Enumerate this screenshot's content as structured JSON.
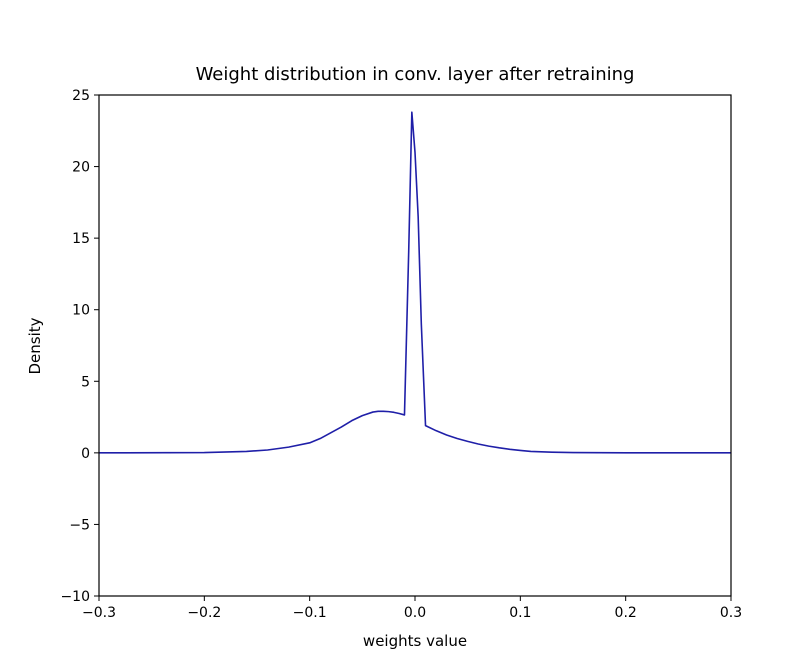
{
  "chart_data": {
    "type": "line",
    "title": "Weight distribution in conv. layer after retraining",
    "xlabel": "weights value",
    "ylabel": "Density",
    "xlim": [
      -0.3,
      0.3
    ],
    "ylim": [
      -10,
      25
    ],
    "xticks": [
      -0.3,
      -0.2,
      -0.1,
      0.0,
      0.1,
      0.2,
      0.3
    ],
    "xtick_labels": [
      "−0.3",
      "−0.2",
      "−0.1",
      "0.0",
      "0.1",
      "0.2",
      "0.3"
    ],
    "yticks": [
      -10,
      -5,
      0,
      5,
      10,
      15,
      20,
      25
    ],
    "ytick_labels": [
      "−10",
      "−5",
      "0",
      "5",
      "10",
      "15",
      "20",
      "25"
    ],
    "grid": false,
    "series": [
      {
        "color": "#1f1fa8",
        "x": [
          -0.3,
          -0.2,
          -0.16,
          -0.14,
          -0.12,
          -0.1,
          -0.09,
          -0.08,
          -0.07,
          -0.06,
          -0.05,
          -0.04,
          -0.035,
          -0.03,
          -0.025,
          -0.02,
          -0.015,
          -0.01,
          -0.006,
          -0.003,
          0.0,
          0.003,
          0.006,
          0.01,
          0.02,
          0.03,
          0.04,
          0.05,
          0.06,
          0.07,
          0.08,
          0.09,
          0.1,
          0.11,
          0.13,
          0.15,
          0.2,
          0.3
        ],
        "y": [
          0.0,
          0.02,
          0.1,
          0.2,
          0.4,
          0.7,
          1.0,
          1.4,
          1.8,
          2.25,
          2.6,
          2.85,
          2.9,
          2.9,
          2.88,
          2.83,
          2.75,
          2.65,
          14.0,
          23.8,
          21.0,
          16.5,
          9.0,
          1.9,
          1.55,
          1.25,
          1.0,
          0.8,
          0.62,
          0.47,
          0.35,
          0.25,
          0.17,
          0.1,
          0.05,
          0.02,
          0.0,
          0.0
        ]
      }
    ]
  }
}
